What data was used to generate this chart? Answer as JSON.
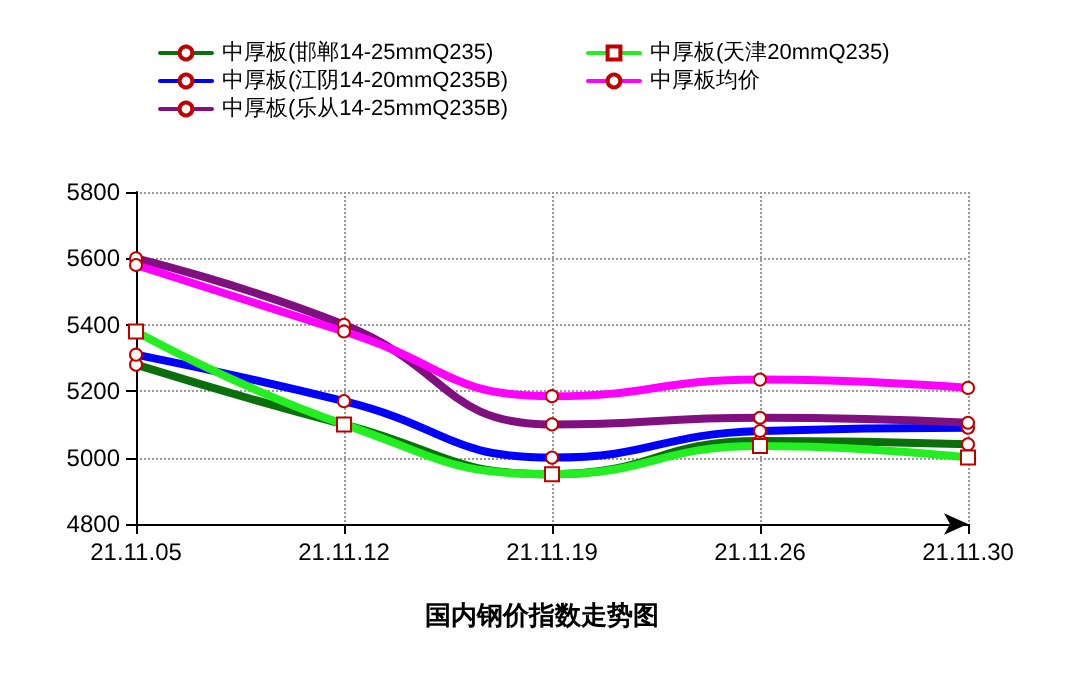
{
  "chart_data": {
    "type": "line",
    "title": "国内钢价指数走势图",
    "categories": [
      "21.11.05",
      "21.11.12",
      "21.11.19",
      "21.11.26",
      "21.11.30"
    ],
    "series": [
      {
        "name": "中厚板(邯郸14-25mmQ235)",
        "color": "#0b700b",
        "marker": "circle",
        "values": [
          5280,
          5100,
          4950,
          5050,
          5040
        ]
      },
      {
        "name": "中厚板(江阴14-20mmQ235B)",
        "color": "#0000ff",
        "marker": "circle",
        "values": [
          5310,
          5170,
          5000,
          5080,
          5090
        ]
      },
      {
        "name": "中厚板(乐从14-25mmQ235B)",
        "color": "#800f80",
        "marker": "circle",
        "values": [
          5600,
          5400,
          5100,
          5120,
          5105
        ]
      },
      {
        "name": "中厚板(天津20mmQ235)",
        "color": "#22ee22",
        "marker": "square",
        "values": [
          5380,
          5100,
          4950,
          5035,
          5000
        ]
      },
      {
        "name": "中厚板均价",
        "color": "#ff00ff",
        "marker": "circle",
        "values": [
          5580,
          5380,
          5185,
          5235,
          5210
        ]
      }
    ],
    "ylim": [
      4800,
      5800
    ],
    "yticks": [
      4800,
      5000,
      5200,
      5400,
      5600,
      5800
    ],
    "grid": true,
    "legend": "top",
    "line_style": "solid"
  }
}
